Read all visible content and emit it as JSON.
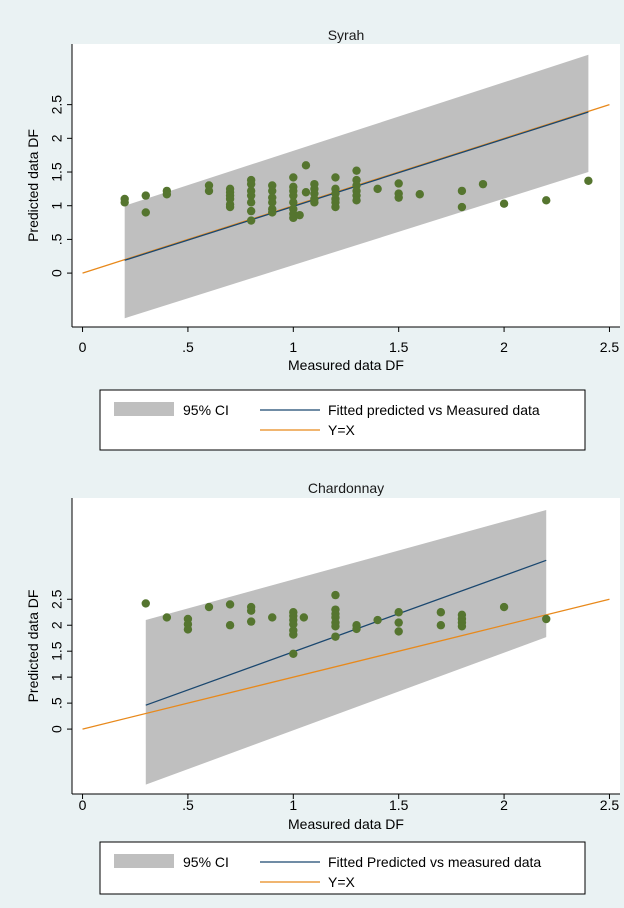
{
  "colors": {
    "panel_bg": "#eaf2f3",
    "plot_bg": "#ffffff",
    "ci_band": "#bfbfbf",
    "fitted_line": "#1a476f",
    "yx_line": "#e8891b",
    "points": "#55752f",
    "axis": "#000000"
  },
  "chart_data": [
    {
      "type": "scatter",
      "title": "Syrah",
      "xlabel": "Measured data DF",
      "ylabel": "Predicted data DF",
      "xlim": [
        -0.05,
        2.55
      ],
      "ylim": [
        -0.8,
        3.4
      ],
      "xticks": [
        0,
        0.5,
        1,
        1.5,
        2,
        2.5
      ],
      "xtick_labels": [
        "0",
        ".5",
        "1",
        "1.5",
        "2",
        "2.5"
      ],
      "yticks": [
        0,
        0.5,
        1,
        1.5,
        2,
        2.5
      ],
      "ytick_labels": [
        "0",
        ".5",
        "1",
        "1.5",
        "2",
        "2.5"
      ],
      "ci_band": {
        "x": [
          0.2,
          2.4
        ],
        "lower": [
          -0.67,
          1.5
        ],
        "upper": [
          1.0,
          3.24
        ]
      },
      "fitted_line": {
        "x": [
          0.2,
          2.4
        ],
        "y": [
          0.19,
          2.39
        ]
      },
      "yx_line": {
        "x": [
          0,
          2.5
        ],
        "y": [
          0,
          2.5
        ]
      },
      "points": [
        [
          0.2,
          1.1
        ],
        [
          0.2,
          1.05
        ],
        [
          0.3,
          1.15
        ],
        [
          0.3,
          0.9
        ],
        [
          0.4,
          1.22
        ],
        [
          0.4,
          1.17
        ],
        [
          0.6,
          1.3
        ],
        [
          0.6,
          1.22
        ],
        [
          0.7,
          1.25
        ],
        [
          0.7,
          1.2
        ],
        [
          0.7,
          1.15
        ],
        [
          0.7,
          1.1
        ],
        [
          0.7,
          1.02
        ],
        [
          0.7,
          0.98
        ],
        [
          0.8,
          1.38
        ],
        [
          0.8,
          1.32
        ],
        [
          0.8,
          1.22
        ],
        [
          0.8,
          1.15
        ],
        [
          0.8,
          1.05
        ],
        [
          0.8,
          0.92
        ],
        [
          0.8,
          0.78
        ],
        [
          0.9,
          1.3
        ],
        [
          0.9,
          1.22
        ],
        [
          0.9,
          1.12
        ],
        [
          0.9,
          1.05
        ],
        [
          0.9,
          0.95
        ],
        [
          0.9,
          0.9
        ],
        [
          1.0,
          1.42
        ],
        [
          1.0,
          1.28
        ],
        [
          1.0,
          1.22
        ],
        [
          1.0,
          1.15
        ],
        [
          1.0,
          1.05
        ],
        [
          1.0,
          0.95
        ],
        [
          1.0,
          0.88
        ],
        [
          1.0,
          0.82
        ],
        [
          1.03,
          0.86
        ],
        [
          1.06,
          1.6
        ],
        [
          1.06,
          1.2
        ],
        [
          1.1,
          1.32
        ],
        [
          1.1,
          1.25
        ],
        [
          1.1,
          1.18
        ],
        [
          1.1,
          1.1
        ],
        [
          1.1,
          1.05
        ],
        [
          1.2,
          1.42
        ],
        [
          1.2,
          1.25
        ],
        [
          1.2,
          1.18
        ],
        [
          1.2,
          1.1
        ],
        [
          1.2,
          1.05
        ],
        [
          1.2,
          0.98
        ],
        [
          1.3,
          1.52
        ],
        [
          1.3,
          1.38
        ],
        [
          1.3,
          1.3
        ],
        [
          1.3,
          1.22
        ],
        [
          1.3,
          1.15
        ],
        [
          1.3,
          1.08
        ],
        [
          1.4,
          1.25
        ],
        [
          1.5,
          1.33
        ],
        [
          1.5,
          1.18
        ],
        [
          1.5,
          1.12
        ],
        [
          1.6,
          1.17
        ],
        [
          1.8,
          1.22
        ],
        [
          1.8,
          0.98
        ],
        [
          1.9,
          1.32
        ],
        [
          2.0,
          1.03
        ],
        [
          2.2,
          1.08
        ],
        [
          2.4,
          1.37
        ]
      ],
      "legend": [
        "95% CI",
        "Fitted predicted vs Measured data",
        "Y=X"
      ]
    },
    {
      "type": "scatter",
      "title": "Chardonnay",
      "xlabel": "Measured data DF",
      "ylabel": "Predicted data DF",
      "xlim": [
        -0.05,
        2.55
      ],
      "ylim": [
        -1.25,
        4.45
      ],
      "xticks": [
        0,
        0.5,
        1,
        1.5,
        2,
        2.5
      ],
      "xtick_labels": [
        "0",
        ".5",
        "1",
        "1.5",
        "2",
        "2.5"
      ],
      "yticks": [
        0,
        0.5,
        1,
        1.5,
        2,
        2.5
      ],
      "ytick_labels": [
        "0",
        ".5",
        "1",
        "1.5",
        "2",
        "2.5"
      ],
      "ci_band": {
        "x": [
          0.3,
          2.2
        ],
        "lower": [
          -1.07,
          1.77
        ],
        "upper": [
          2.1,
          4.22
        ]
      },
      "fitted_line": {
        "x": [
          0.3,
          2.2
        ],
        "y": [
          0.46,
          3.25
        ]
      },
      "yx_line": {
        "x": [
          0,
          2.5
        ],
        "y": [
          0,
          2.5
        ]
      },
      "points": [
        [
          0.3,
          2.42
        ],
        [
          0.4,
          2.15
        ],
        [
          0.5,
          2.12
        ],
        [
          0.5,
          2.02
        ],
        [
          0.5,
          1.92
        ],
        [
          0.6,
          2.35
        ],
        [
          0.7,
          2.4
        ],
        [
          0.7,
          2.0
        ],
        [
          0.8,
          2.35
        ],
        [
          0.8,
          2.28
        ],
        [
          0.8,
          2.07
        ],
        [
          0.9,
          2.15
        ],
        [
          1.0,
          2.25
        ],
        [
          1.0,
          2.18
        ],
        [
          1.0,
          2.1
        ],
        [
          1.0,
          2.02
        ],
        [
          1.0,
          1.9
        ],
        [
          1.0,
          1.82
        ],
        [
          1.0,
          1.45
        ],
        [
          1.05,
          2.15
        ],
        [
          1.2,
          2.58
        ],
        [
          1.2,
          2.3
        ],
        [
          1.2,
          2.22
        ],
        [
          1.2,
          2.15
        ],
        [
          1.2,
          2.05
        ],
        [
          1.2,
          1.98
        ],
        [
          1.2,
          1.78
        ],
        [
          1.3,
          2.0
        ],
        [
          1.3,
          1.93
        ],
        [
          1.4,
          2.1
        ],
        [
          1.5,
          2.25
        ],
        [
          1.5,
          2.05
        ],
        [
          1.5,
          1.88
        ],
        [
          1.7,
          2.25
        ],
        [
          1.7,
          2.0
        ],
        [
          1.8,
          2.2
        ],
        [
          1.8,
          2.12
        ],
        [
          1.8,
          2.05
        ],
        [
          1.8,
          1.98
        ],
        [
          2.0,
          2.35
        ],
        [
          2.2,
          2.12
        ]
      ],
      "legend": [
        "95% CI",
        "Fitted Predicted vs measured data",
        "Y=X"
      ]
    }
  ]
}
